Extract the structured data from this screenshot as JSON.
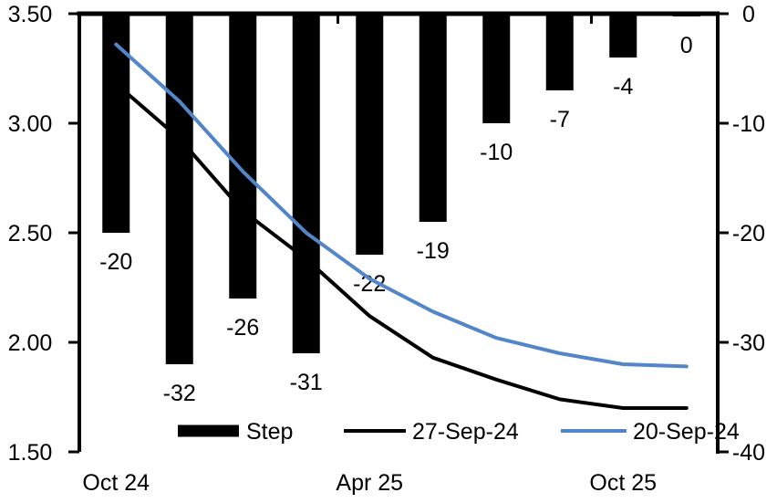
{
  "chart_data": {
    "type": "combo-bar-line",
    "title": "",
    "n_categories": 10,
    "x_axis": {
      "tick_labels": [
        {
          "label": "Oct 24",
          "category_index": 0
        },
        {
          "label": "Apr 25",
          "category_index": 4
        },
        {
          "label": "Oct 25",
          "category_index": 8
        }
      ]
    },
    "left_axis": {
      "min": 1.5,
      "max": 3.5,
      "tick_labels": [
        "3.50",
        "3.00",
        "2.50",
        "2.00",
        "1.50"
      ]
    },
    "right_axis": {
      "min": -40,
      "max": 0,
      "tick_labels": [
        "0",
        "-10",
        "-20",
        "-30",
        "-40"
      ]
    },
    "bar_series": {
      "name": "Step",
      "axis": "right",
      "color": "#000000",
      "values": [
        -20,
        -32,
        -26,
        -31,
        -22,
        -19,
        -10,
        -7,
        -4,
        0
      ],
      "data_labels": [
        "-20",
        "-32",
        "-26",
        "-31",
        "-22",
        "-19",
        "-10",
        "-7",
        "-4",
        "0"
      ]
    },
    "line_series": [
      {
        "name": "27-Sep-24",
        "axis": "left",
        "color": "#000000",
        "values": [
          3.18,
          2.93,
          2.6,
          2.38,
          2.12,
          1.93,
          1.83,
          1.74,
          1.7,
          1.7
        ]
      },
      {
        "name": "20-Sep-24",
        "axis": "left",
        "color": "#5385C9",
        "values": [
          3.36,
          3.1,
          2.78,
          2.5,
          2.29,
          2.14,
          2.02,
          1.95,
          1.9,
          1.89
        ]
      }
    ],
    "legend": {
      "position": "bottom-inside",
      "items": [
        {
          "label": "Step",
          "swatch": "bar",
          "color": "#000000"
        },
        {
          "label": "27-Sep-24",
          "swatch": "line",
          "color": "#000000"
        },
        {
          "label": "20-Sep-24",
          "swatch": "line",
          "color": "#5385C9"
        }
      ]
    },
    "grid": "off"
  }
}
